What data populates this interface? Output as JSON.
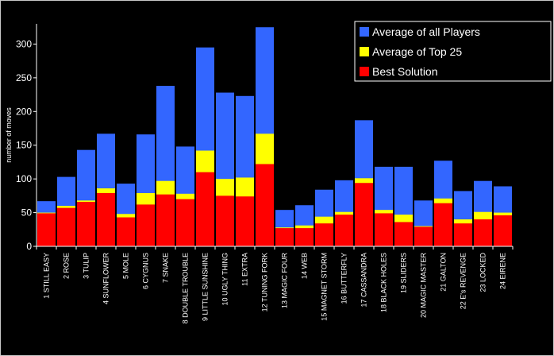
{
  "chart_data": {
    "type": "bar",
    "stacked": "overlay",
    "ylabel": "number of moves",
    "ylim": [
      0,
      330
    ],
    "yticks": [
      0,
      50,
      100,
      150,
      200,
      250,
      300
    ],
    "grid": false,
    "legend_position": "top-right",
    "categories": [
      "1 STILL EASY",
      "2 ROSE",
      "3 TULIP",
      "4 SUNFLOWER",
      "5 MOLE",
      "6 CYGNUS",
      "7 SNAKE",
      "8 DOUBLE TROUBLE",
      "9 LITTLE SUNSHINE",
      "10 UGLY THING",
      "11 EXTRA",
      "12 TUNING FORK",
      "13 MAGIC FOUR",
      "14 WEB",
      "15 MAGNET STORM",
      "16 BUTTERFLY",
      "17 CASSANDRA",
      "18 BLACK HOLES",
      "19 SLIDERS",
      "20 MAGIC MASTER",
      "21 GALTON",
      "22 E's REVENGE",
      "23 LOCKED",
      "24 EIRENE"
    ],
    "series": [
      {
        "name": "Average of all Players",
        "color": "#3366ff",
        "values": [
          67,
          103,
          143,
          167,
          93,
          166,
          238,
          148,
          295,
          228,
          223,
          325,
          54,
          61,
          84,
          98,
          187,
          118,
          118,
          68,
          127,
          82,
          97,
          89
        ]
      },
      {
        "name": "Average of Top 25",
        "color": "#ffff00",
        "values": [
          50,
          60,
          68,
          86,
          48,
          79,
          97,
          78,
          142,
          100,
          102,
          167,
          28,
          31,
          44,
          51,
          101,
          54,
          47,
          30,
          71,
          40,
          51,
          50
        ]
      },
      {
        "name": "Best Solution",
        "color": "#ff0000",
        "values": [
          49,
          57,
          66,
          79,
          43,
          62,
          77,
          70,
          110,
          75,
          74,
          122,
          27,
          27,
          34,
          47,
          94,
          49,
          36,
          29,
          64,
          34,
          40,
          46
        ]
      }
    ]
  }
}
